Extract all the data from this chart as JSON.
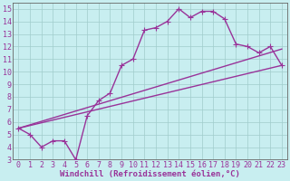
{
  "xlabel": "Windchill (Refroidissement éolien,°C)",
  "xlim": [
    -0.5,
    23.5
  ],
  "ylim": [
    3,
    15.5
  ],
  "xticks": [
    0,
    1,
    2,
    3,
    4,
    5,
    6,
    7,
    8,
    9,
    10,
    11,
    12,
    13,
    14,
    15,
    16,
    17,
    18,
    19,
    20,
    21,
    22,
    23
  ],
  "yticks": [
    3,
    4,
    5,
    6,
    7,
    8,
    9,
    10,
    11,
    12,
    13,
    14,
    15
  ],
  "bg_color": "#c8eef0",
  "line_color": "#993399",
  "grid_color": "#a0cccc",
  "main_series": {
    "x": [
      0,
      1,
      2,
      3,
      4,
      5,
      6,
      7,
      8,
      9,
      10,
      11,
      12,
      13,
      14,
      15,
      16,
      17,
      18,
      19,
      20,
      21,
      22,
      23
    ],
    "y": [
      5.5,
      5.0,
      4.0,
      4.5,
      4.5,
      3.0,
      6.5,
      7.7,
      8.3,
      10.5,
      11.0,
      13.3,
      13.5,
      14.0,
      15.0,
      14.3,
      14.8,
      14.8,
      14.2,
      12.2,
      12.0,
      11.5,
      12.0,
      10.5
    ]
  },
  "line1": {
    "x": [
      0,
      23
    ],
    "y": [
      5.5,
      10.5
    ]
  },
  "line2": {
    "x": [
      0,
      23
    ],
    "y": [
      5.5,
      11.8
    ]
  },
  "font_size": 6.5,
  "marker": "+",
  "marker_size": 4,
  "line_width": 1.0
}
